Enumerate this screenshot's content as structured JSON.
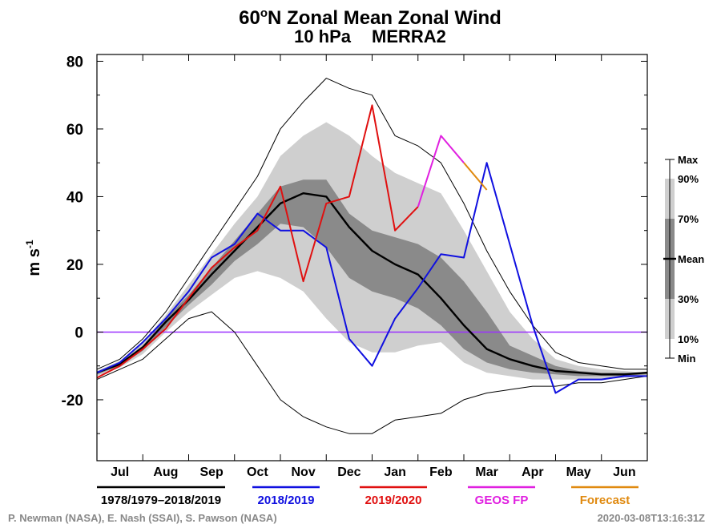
{
  "chart_data": {
    "type": "line",
    "title": "60oN Zonal Mean Zonal Wind",
    "title_parts": {
      "pre": "60",
      "sup": "o",
      "post": "N Zonal Mean Zonal Wind"
    },
    "subtitle_left": "10 hPa",
    "subtitle_right": "MERRA2",
    "ylabel": {
      "base": "m s",
      "sup": "-1"
    },
    "ylim": [
      -38,
      82
    ],
    "yticks": [
      80,
      60,
      40,
      20,
      0,
      -20
    ],
    "x_months": [
      "Jul",
      "Aug",
      "Sep",
      "Oct",
      "Nov",
      "Dec",
      "Jan",
      "Feb",
      "Mar",
      "Apr",
      "May",
      "Jun"
    ],
    "zero_line_color": "#9b30ff",
    "band_legend": [
      "Max",
      "90%",
      "70%",
      "Mean",
      "30%",
      "10%",
      "Min"
    ],
    "band_colors": {
      "outer": "#cfcfcf",
      "inner": "#8a8a8a"
    },
    "x": [
      0,
      15,
      30,
      45,
      60,
      75,
      90,
      105,
      120,
      135,
      150,
      165,
      180,
      195,
      210,
      225,
      240,
      255,
      270,
      285,
      300,
      315,
      330,
      345,
      360
    ],
    "series": [
      {
        "name": "1978/1979–2018/2019",
        "role": "max",
        "color": "#000000",
        "values": [
          -11,
          -8,
          -2,
          6,
          16,
          26,
          36,
          46,
          60,
          68,
          75,
          72,
          70,
          58,
          55,
          50,
          38,
          24,
          12,
          2,
          -6,
          -9,
          -10,
          -11,
          -11
        ]
      },
      {
        "name": "1978/1979–2018/2019",
        "role": "p90",
        "color": "#cfcfcf",
        "values": [
          -11.5,
          -8.5,
          -3,
          5,
          14,
          23,
          32,
          40,
          52,
          58,
          62,
          58,
          52,
          47,
          44,
          41,
          30,
          18,
          6,
          -2,
          -8,
          -10,
          -11,
          -11.5,
          -12
        ]
      },
      {
        "name": "1978/1979–2018/2019",
        "role": "p70",
        "color": "#8a8a8a",
        "values": [
          -12,
          -9,
          -4,
          4,
          11,
          19,
          27,
          35,
          43,
          45,
          45,
          35,
          30,
          28,
          26,
          22,
          15,
          6,
          -4,
          -7,
          -10,
          -11.5,
          -12,
          -12,
          -12
        ]
      },
      {
        "name": "1978/1979–2018/2019",
        "role": "mean",
        "color": "#000000",
        "values": [
          -12,
          -9.5,
          -4.5,
          3,
          9.5,
          17,
          24,
          31,
          38,
          41,
          40,
          31,
          24,
          20,
          17,
          10,
          2,
          -5,
          -8,
          -10,
          -11.5,
          -12,
          -12.5,
          -12.5,
          -12
        ]
      },
      {
        "name": "1978/1979–2018/2019",
        "role": "p30",
        "color": "#8a8a8a",
        "values": [
          -12.5,
          -10,
          -5.5,
          1.5,
          8,
          14,
          21,
          26,
          32,
          31,
          25,
          16,
          12,
          10,
          7,
          2,
          -5,
          -9,
          -11,
          -12,
          -12.5,
          -13,
          -13,
          -13,
          -12.5
        ]
      },
      {
        "name": "1978/1979–2018/2019",
        "role": "p10",
        "color": "#cfcfcf",
        "values": [
          -13,
          -10.5,
          -6.5,
          0,
          6,
          11,
          16,
          18,
          16,
          12,
          4,
          -3,
          -6,
          -6,
          -4,
          -3,
          -9,
          -12,
          -13,
          -14,
          -14,
          -14,
          -14,
          -13.5,
          -13
        ]
      },
      {
        "name": "1978/1979–2018/2019",
        "role": "min",
        "color": "#000000",
        "values": [
          -14,
          -11,
          -8,
          -2,
          4,
          6,
          0,
          -10,
          -20,
          -25,
          -28,
          -30,
          -30,
          -26,
          -25,
          -24,
          -20,
          -18,
          -17,
          -16,
          -16,
          -15,
          -15,
          -14,
          -13
        ]
      },
      {
        "name": "2018/2019",
        "color": "#1010e0",
        "values": [
          -12,
          -9,
          -3,
          4,
          12,
          22,
          26,
          35,
          30,
          30,
          25,
          -2,
          -10,
          4,
          13,
          23,
          22,
          50,
          26,
          2,
          -18,
          -14,
          -14,
          -13,
          -13
        ]
      },
      {
        "name": "2019/2020",
        "color": "#e01010",
        "values": [
          -13.5,
          -10,
          -5,
          1,
          10,
          19,
          25,
          30,
          43,
          15,
          38,
          40,
          67,
          30,
          37,
          null,
          null,
          null,
          null,
          null,
          null,
          null,
          null,
          null,
          null
        ]
      },
      {
        "name": "GEOS FP",
        "color": "#e020e0",
        "values": [
          null,
          null,
          null,
          null,
          null,
          null,
          null,
          null,
          null,
          null,
          null,
          null,
          null,
          null,
          37,
          58,
          50,
          null,
          null,
          null,
          null,
          null,
          null,
          null,
          null
        ]
      },
      {
        "name": "Forecast",
        "color": "#e08a10",
        "values": [
          null,
          null,
          null,
          null,
          null,
          null,
          null,
          null,
          null,
          null,
          null,
          null,
          null,
          null,
          null,
          null,
          50,
          42,
          null,
          null,
          null,
          null,
          null,
          null,
          null
        ]
      }
    ],
    "legend": [
      {
        "label": "1978/1979–2018/2019",
        "color": "#000000"
      },
      {
        "label": "2018/2019",
        "color": "#1010e0"
      },
      {
        "label": "2019/2020",
        "color": "#e01010"
      },
      {
        "label": "GEOS FP",
        "color": "#e020e0"
      },
      {
        "label": "Forecast",
        "color": "#e08a10"
      }
    ]
  },
  "credits": {
    "authors": "P. Newman (NASA), E. Nash (SSAI), S. Pawson (NASA)",
    "timestamp": "2020-03-08T13:16:31Z"
  }
}
